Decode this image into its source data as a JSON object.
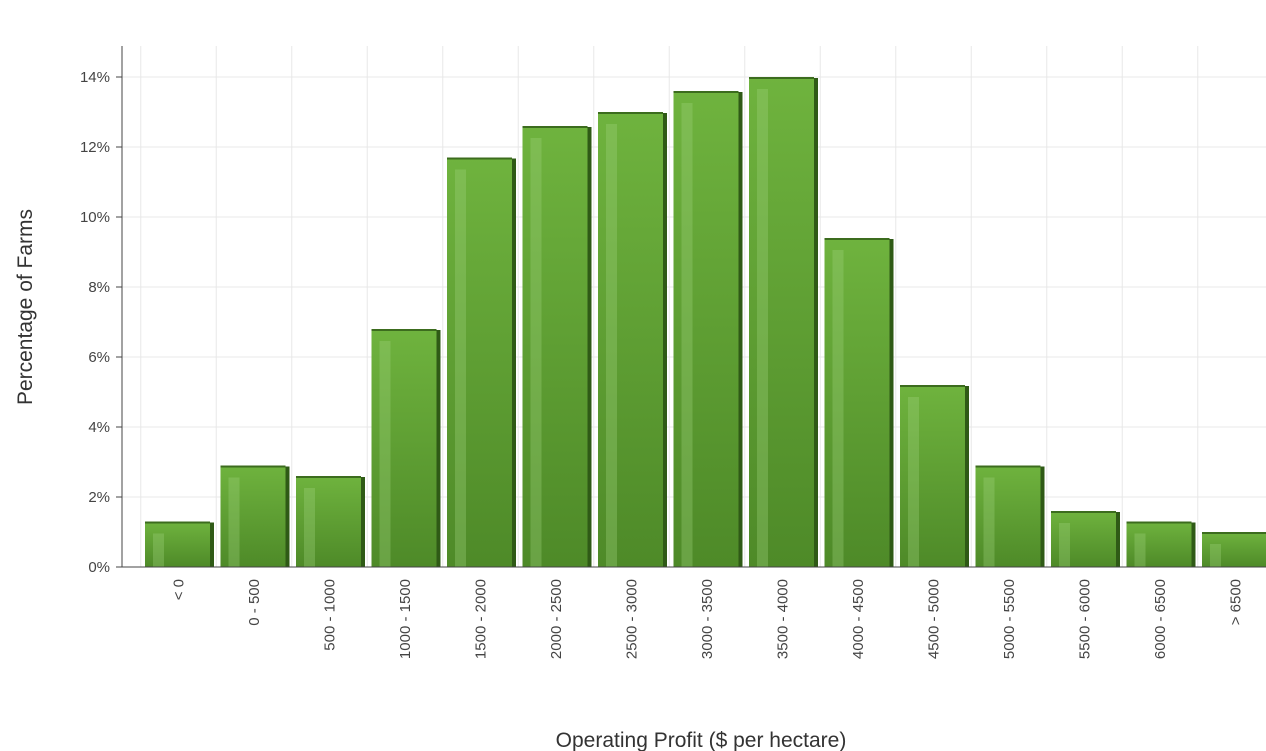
{
  "chart_data": {
    "type": "bar",
    "title": "",
    "xlabel": "Operating Profit ($ per hectare)",
    "ylabel": "Percentage of Farms",
    "categories": [
      "< 0",
      "0 - 500",
      "500 - 1000",
      "1000 - 1500",
      "1500 - 2000",
      "2000 - 2500",
      "2500 - 3000",
      "3000 - 3500",
      "3500 - 4000",
      "4000 - 4500",
      "4500 - 5000",
      "5000 - 5500",
      "5500 - 6000",
      "6000 - 6500",
      "> 6500"
    ],
    "values": [
      1.3,
      2.9,
      2.6,
      6.8,
      11.7,
      12.6,
      13.0,
      13.6,
      14.0,
      9.4,
      5.2,
      2.9,
      1.6,
      1.3,
      1.0
    ],
    "ylim": [
      0,
      14
    ],
    "yticks": [
      0,
      2,
      4,
      6,
      8,
      10,
      12,
      14
    ],
    "ytick_labels": [
      "0%",
      "2%",
      "4%",
      "6%",
      "8%",
      "10%",
      "12%",
      "14%"
    ],
    "grid": true,
    "legend": "none",
    "colors": {
      "bar_top": "#6fb33e",
      "bar_bottom": "#4e8a28",
      "bar_edge": "#2f5a16",
      "highlight": "#9ed17a"
    }
  }
}
